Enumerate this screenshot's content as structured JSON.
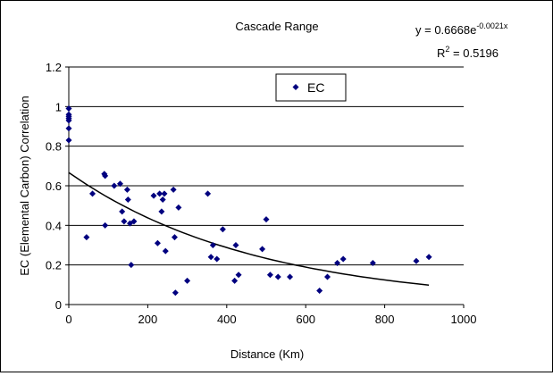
{
  "chart_data": {
    "type": "scatter",
    "title": "Cascade Range",
    "xlabel": "Distance (Km)",
    "ylabel": "EC (Elemental Carbon) Correlation",
    "xlim": [
      0,
      1000
    ],
    "ylim": [
      0,
      1.2
    ],
    "x_ticks": [
      "0",
      "200",
      "400",
      "600",
      "800",
      "1000"
    ],
    "y_ticks": [
      "0",
      "0.2",
      "0.4",
      "0.6",
      "0.8",
      "1",
      "1.2"
    ],
    "grid": "horizontal",
    "legend_position": "top-center",
    "colors": {
      "marker": "#00007f",
      "trendline": "#000000",
      "grid": "#000000"
    },
    "series": [
      {
        "name": "EC",
        "marker": "diamond",
        "points": [
          [
            0,
            0.99
          ],
          [
            0,
            0.96
          ],
          [
            0,
            0.95
          ],
          [
            0,
            0.94
          ],
          [
            0,
            0.93
          ],
          [
            0,
            0.89
          ],
          [
            0,
            0.83
          ],
          [
            45,
            0.34
          ],
          [
            60,
            0.56
          ],
          [
            90,
            0.66
          ],
          [
            92,
            0.65
          ],
          [
            92,
            0.4
          ],
          [
            115,
            0.6
          ],
          [
            130,
            0.61
          ],
          [
            135,
            0.47
          ],
          [
            140,
            0.42
          ],
          [
            148,
            0.58
          ],
          [
            150,
            0.53
          ],
          [
            155,
            0.41
          ],
          [
            158,
            0.2
          ],
          [
            165,
            0.42
          ],
          [
            215,
            0.55
          ],
          [
            225,
            0.31
          ],
          [
            230,
            0.56
          ],
          [
            235,
            0.47
          ],
          [
            238,
            0.53
          ],
          [
            242,
            0.56
          ],
          [
            245,
            0.27
          ],
          [
            265,
            0.58
          ],
          [
            268,
            0.34
          ],
          [
            270,
            0.06
          ],
          [
            278,
            0.49
          ],
          [
            300,
            0.12
          ],
          [
            352,
            0.56
          ],
          [
            360,
            0.24
          ],
          [
            365,
            0.3
          ],
          [
            375,
            0.23
          ],
          [
            390,
            0.38
          ],
          [
            420,
            0.12
          ],
          [
            423,
            0.3
          ],
          [
            430,
            0.15
          ],
          [
            490,
            0.28
          ],
          [
            500,
            0.43
          ],
          [
            510,
            0.15
          ],
          [
            530,
            0.14
          ],
          [
            560,
            0.14
          ],
          [
            635,
            0.07
          ],
          [
            655,
            0.14
          ],
          [
            680,
            0.21
          ],
          [
            695,
            0.23
          ],
          [
            770,
            0.21
          ],
          [
            880,
            0.22
          ],
          [
            912,
            0.24
          ]
        ]
      }
    ],
    "trendline": {
      "type": "exponential",
      "a": 0.6668,
      "b": -0.0021,
      "x_range": [
        0,
        912
      ],
      "equation_prefix": "y = 0.6668e",
      "equation_exponent": "-0.0021x",
      "r2_label": "R",
      "r2_sup": "2",
      "r2_value": " = 0.5196"
    }
  }
}
